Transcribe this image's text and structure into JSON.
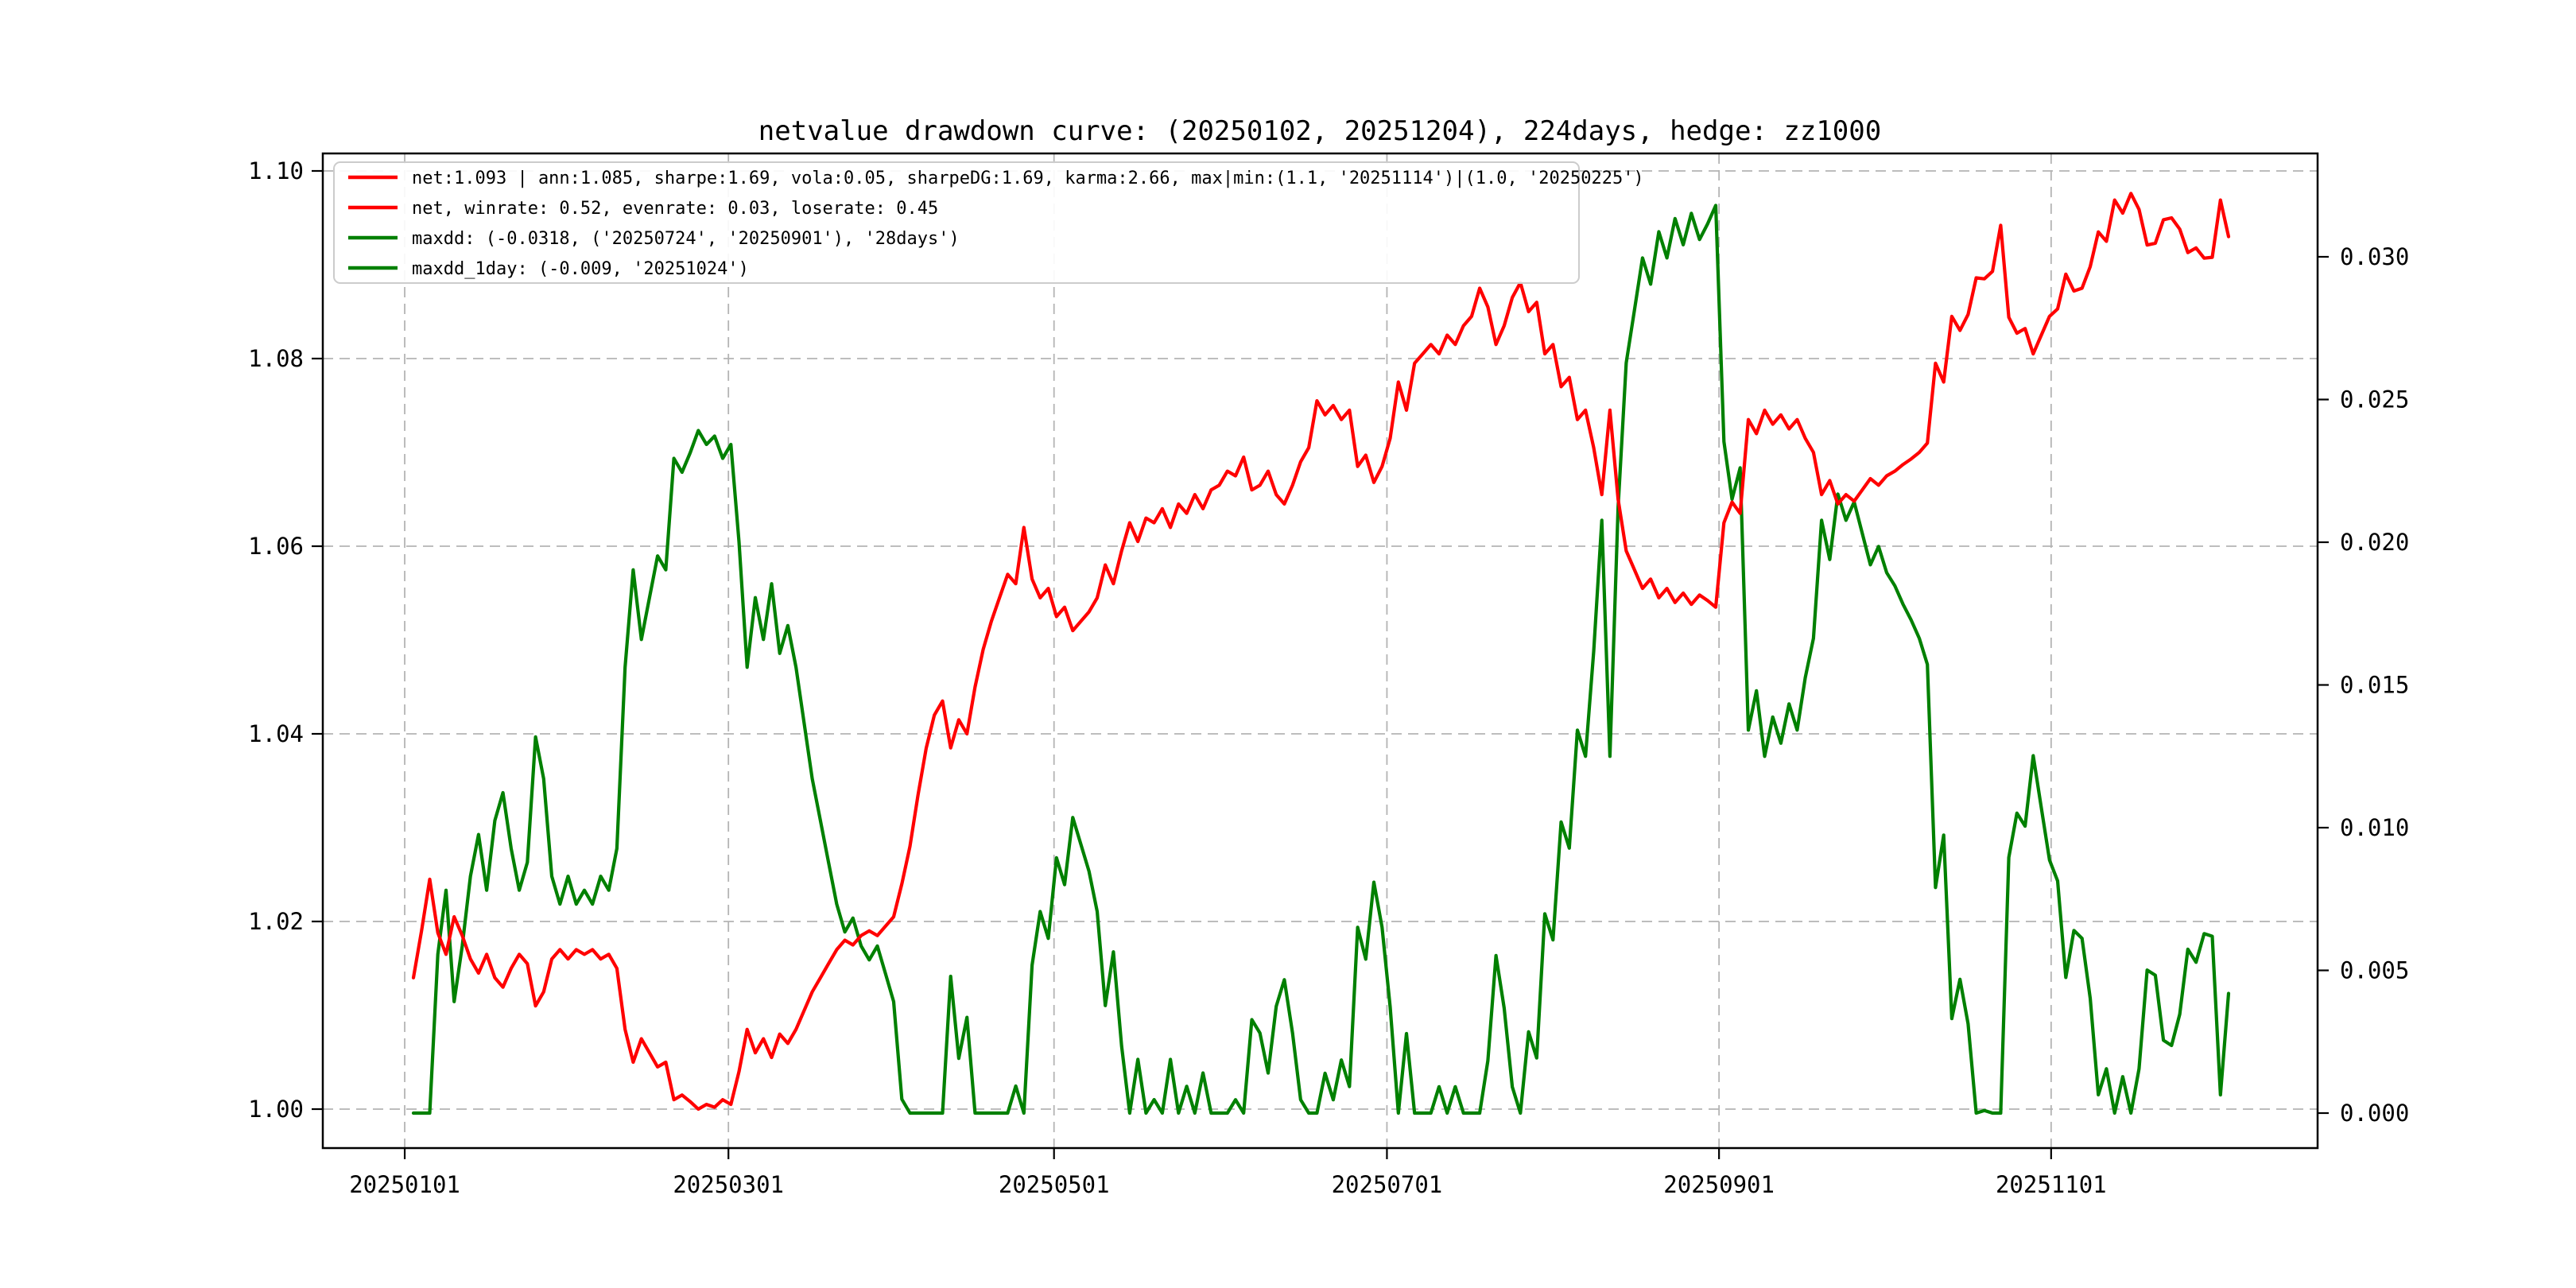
{
  "title": "netvalue drawdown curve: (20250102, 20251204), 224days, hedge: zz1000",
  "colors": {
    "net_line": "#ff0000",
    "drawdown_line": "#008000",
    "grid": "#b4b4b4",
    "spine": "#000000",
    "legend_border": "#cccccc",
    "background": "#ffffff"
  },
  "legend": {
    "items": [
      {
        "series": "net",
        "color": "#ff0000",
        "label": "net:1.093 | ann:1.085, sharpe:1.69, vola:0.05, sharpeDG:1.69, karma:2.66, max|min:(1.1, '20251114')|(1.0, '20250225')"
      },
      {
        "series": "net",
        "color": "#ff0000",
        "label": "net, winrate: 0.52, evenrate: 0.03, loserate: 0.45"
      },
      {
        "series": "maxdd",
        "color": "#008000",
        "label": "maxdd: (-0.0318, ('20250724', '20250901'), '28days')"
      },
      {
        "series": "maxdd_1day",
        "color": "#008000",
        "label": "maxdd_1day: (-0.009, '20251024')"
      }
    ]
  },
  "axes": {
    "x": {
      "tick_labels": [
        "20250101",
        "20250301",
        "20250501",
        "20250701",
        "20250901",
        "20251101"
      ],
      "tick_indices": [
        -1.07,
        38.7,
        78.7,
        119.6,
        160.4,
        201.2
      ],
      "range_index": [
        -11.1,
        233.9
      ]
    },
    "y_left": {
      "tick_labels": [
        "1.00",
        "1.02",
        "1.04",
        "1.06",
        "1.08",
        "1.10"
      ],
      "tick_values": [
        1.0,
        1.02,
        1.04,
        1.06,
        1.08,
        1.1
      ],
      "range": [
        0.9958,
        1.1019
      ]
    },
    "y_right": {
      "tick_labels": [
        "0.000",
        "0.005",
        "0.010",
        "0.015",
        "0.020",
        "0.025",
        "0.030"
      ],
      "tick_values": [
        0.0,
        0.005,
        0.01,
        0.015,
        0.02,
        0.025,
        0.03
      ],
      "range": [
        -0.00123,
        0.03362
      ]
    }
  },
  "chart_data": {
    "type": "line",
    "title": "netvalue drawdown curve: (20250102, 20251204), 224days, hedge: zz1000",
    "x_unit": "trading_day_index",
    "n_points": 224,
    "index_date_anchors": {
      "0": "20250102",
      "35": "20250225",
      "136": "20250724",
      "160": "20250901",
      "196": "20251024",
      "211": "20251114",
      "223": "20251204"
    },
    "x_tick_dates": [
      "20250101",
      "20250301",
      "20250501",
      "20250701",
      "20250901",
      "20251101"
    ],
    "grid": "dashed, left-axis ticks only",
    "legend_position": "upper left",
    "series": [
      {
        "name": "net",
        "axis": "left",
        "color": "#ff0000",
        "values": [
          1.014,
          1.019,
          1.0245,
          1.0188,
          1.0165,
          1.0205,
          1.0185,
          1.016,
          1.0145,
          1.0165,
          1.014,
          1.013,
          1.015,
          1.0165,
          1.0155,
          1.011,
          1.0125,
          1.016,
          1.017,
          1.016,
          1.017,
          1.0165,
          1.017,
          1.016,
          1.0165,
          1.015,
          1.0085,
          1.005,
          1.0075,
          1.006,
          1.0045,
          1.005,
          1.001,
          1.0015,
          1.0008,
          1.0,
          1.0005,
          1.0002,
          1.001,
          1.0005,
          1.004,
          1.0085,
          1.006,
          1.0075,
          1.0055,
          1.008,
          1.007,
          1.0085,
          1.0105,
          1.0125,
          1.014,
          1.0155,
          1.017,
          1.018,
          1.0175,
          1.0185,
          1.019,
          1.0185,
          1.0195,
          1.0205,
          1.024,
          1.028,
          1.0335,
          1.0385,
          1.042,
          1.0435,
          1.0385,
          1.0415,
          1.04,
          1.045,
          1.049,
          1.052,
          1.0545,
          1.057,
          1.056,
          1.062,
          1.0565,
          1.0545,
          1.0555,
          1.0525,
          1.0535,
          1.051,
          1.052,
          1.053,
          1.0545,
          1.058,
          1.056,
          1.0595,
          1.0625,
          1.0605,
          1.063,
          1.0625,
          1.064,
          1.062,
          1.0645,
          1.0635,
          1.0655,
          1.064,
          1.066,
          1.0665,
          1.068,
          1.0675,
          1.0695,
          1.066,
          1.0665,
          1.068,
          1.0655,
          1.0645,
          1.0665,
          1.069,
          1.0705,
          1.0755,
          1.074,
          1.075,
          1.0735,
          1.0745,
          1.0685,
          1.0697,
          1.0668,
          1.0685,
          1.0715,
          1.0775,
          1.0745,
          1.0795,
          1.0805,
          1.0815,
          1.0805,
          1.0825,
          1.0815,
          1.0835,
          1.0845,
          1.0875,
          1.0855,
          1.0815,
          1.0835,
          1.0865,
          1.0881,
          1.085,
          1.086,
          1.0805,
          1.0815,
          1.077,
          1.078,
          1.0735,
          1.0745,
          1.0705,
          1.0655,
          1.0745,
          1.065,
          1.0595,
          1.0575,
          1.0555,
          1.0565,
          1.0545,
          1.0555,
          1.054,
          1.055,
          1.0538,
          1.0548,
          1.0542,
          1.0535,
          1.0625,
          1.0647,
          1.0635,
          1.0735,
          1.072,
          1.0745,
          1.073,
          1.074,
          1.0725,
          1.0735,
          1.0715,
          1.07,
          1.0655,
          1.067,
          1.0645,
          1.0655,
          1.0648,
          1.066,
          1.0672,
          1.0665,
          1.0675,
          1.068,
          1.0687,
          1.0693,
          1.07,
          1.071,
          1.0795,
          1.0775,
          1.0845,
          1.083,
          1.0847,
          1.0886,
          1.0885,
          1.0893,
          1.0942,
          1.0844,
          1.0827,
          1.0832,
          1.0805,
          1.0825,
          1.0845,
          1.0853,
          1.089,
          1.0872,
          1.0875,
          1.0898,
          1.0935,
          1.0925,
          1.0969,
          1.0955,
          1.0976,
          1.0959,
          1.0921,
          1.0923,
          1.0948,
          1.095,
          1.0938,
          1.0913,
          1.0918,
          1.0907,
          1.0908,
          1.0969,
          1.093
        ]
      },
      {
        "name": "drawdown (maxdd / maxdd_1day)",
        "axis": "right",
        "color": "#008000",
        "derived": "1 - net[i] / max(net[0..i])"
      }
    ],
    "key_points": {
      "net_end": 1.093,
      "net_max": {
        "value": 1.1,
        "date": "20251114"
      },
      "net_min": {
        "value": 1.0,
        "date": "20250225"
      },
      "maxdd": {
        "value": -0.0318,
        "from": "20250724",
        "to": "20250901",
        "duration": "28days"
      },
      "maxdd_1day": {
        "value": -0.009,
        "date": "20251024"
      }
    }
  }
}
